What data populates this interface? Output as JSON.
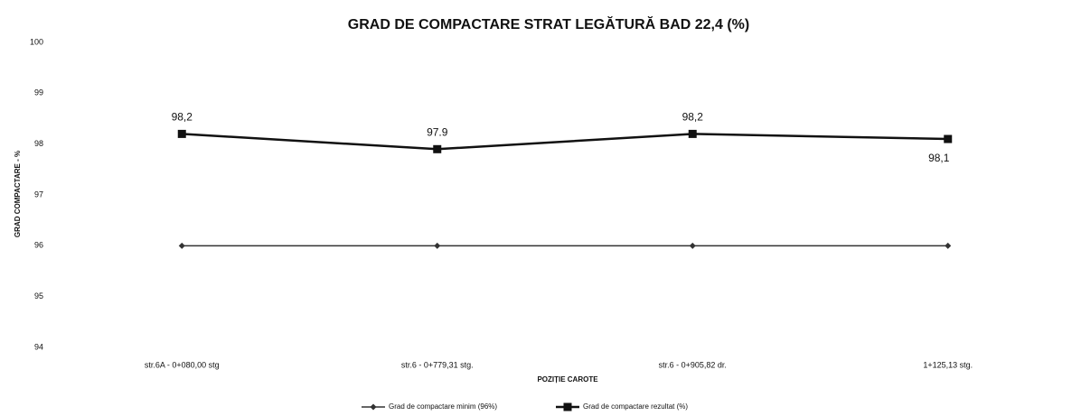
{
  "chart_data": {
    "type": "line",
    "title": "GRAD DE COMPACTARE STRAT LEGĂTURĂ BAD 22,4 (%)",
    "x_label": "POZIȚIE CAROTE",
    "y_label": "GRAD COMPACTARE - %",
    "categories": [
      "str.6A - 0+080,00 stg",
      "str.6 - 0+779,31 stg.",
      "str.6 - 0+905,82 dr.",
      "1+125,13 stg."
    ],
    "series": [
      {
        "name": "Grad de compactare minim (96%)",
        "color": "#333333",
        "marker": "diamond",
        "values": [
          96,
          96,
          96,
          96
        ]
      },
      {
        "name": "Grad de compactare rezultat (%)",
        "color": "#111111",
        "marker": "square",
        "values": [
          98.2,
          97.9,
          98.2,
          98.1
        ],
        "value_labels": [
          "98,2",
          "97.9",
          "98,2",
          "98,1"
        ]
      }
    ],
    "ylim": [
      94,
      100
    ],
    "yticks": [
      94,
      95,
      96,
      97,
      98,
      99,
      100
    ],
    "grid": false,
    "legend": "bottom"
  }
}
